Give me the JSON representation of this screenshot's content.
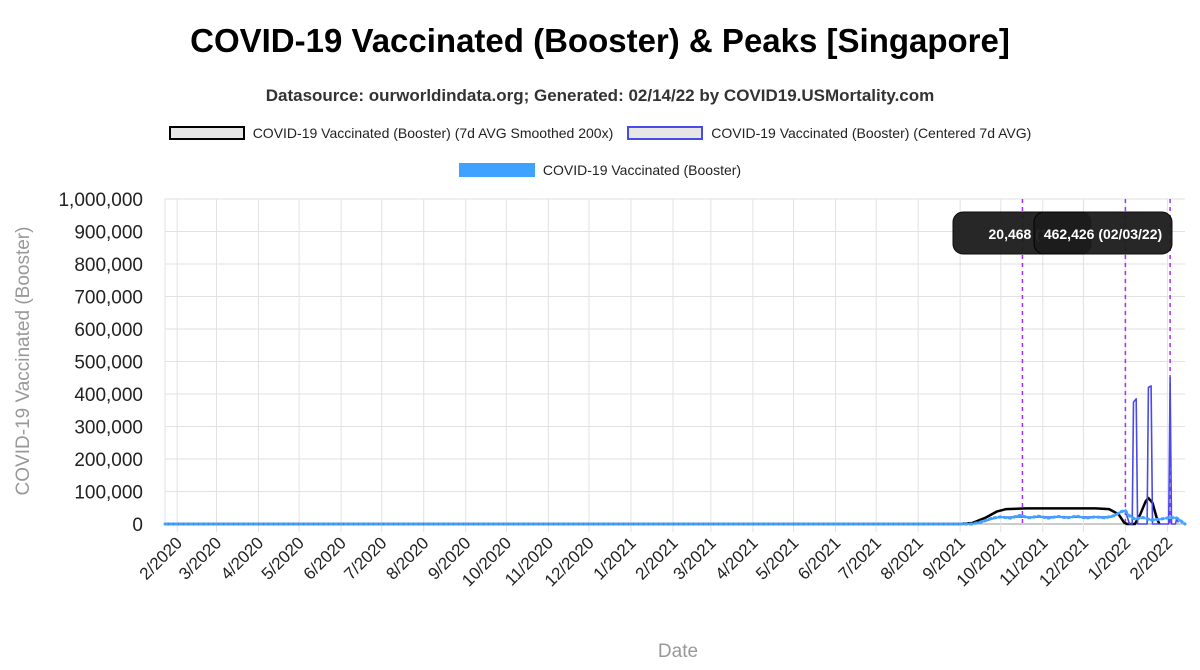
{
  "title": "COVID-19 Vaccinated (Booster) & Peaks [Singapore]",
  "subtitle": "Datasource: ourworldindata.org; Generated: 02/14/22 by COVID19.USMortality.com",
  "legend": [
    {
      "label": "COVID-19 Vaccinated (Booster) (7d AVG Smoothed 200x)",
      "fill": "#e6e6e6",
      "stroke": "#000000"
    },
    {
      "label": "COVID-19 Vaccinated (Booster) (Centered 7d AVG)",
      "fill": "#e6e6e6",
      "stroke": "#4a4ae8"
    },
    {
      "label": "COVID-19 Vaccinated (Booster)",
      "fill": "#3fa2ff",
      "stroke": "#3fa2ff"
    }
  ],
  "tooltips": [
    {
      "text": "20,468 (10",
      "x": "2021-10-17"
    },
    {
      "text": "462,426 (02/03/22)",
      "x": "2022-02-03"
    }
  ],
  "chart_data": {
    "type": "line",
    "xlabel": "Date",
    "ylabel": "COVID-19 Vaccinated (Booster)",
    "x_range": [
      "2020-01-23",
      "2022-02-14"
    ],
    "ylim": [
      0,
      1000000
    ],
    "y_ticks": [
      "0",
      "100,000",
      "200,000",
      "300,000",
      "400,000",
      "500,000",
      "600,000",
      "700,000",
      "800,000",
      "900,000",
      "1,000,000"
    ],
    "x_ticks": [
      {
        "date": "2020-02-01",
        "label": "2/2020"
      },
      {
        "date": "2020-03-01",
        "label": "3/2020"
      },
      {
        "date": "2020-04-01",
        "label": "4/2020"
      },
      {
        "date": "2020-05-01",
        "label": "5/2020"
      },
      {
        "date": "2020-06-01",
        "label": "6/2020"
      },
      {
        "date": "2020-07-01",
        "label": "7/2020"
      },
      {
        "date": "2020-08-01",
        "label": "8/2020"
      },
      {
        "date": "2020-09-01",
        "label": "9/2020"
      },
      {
        "date": "2020-10-01",
        "label": "10/2020"
      },
      {
        "date": "2020-11-01",
        "label": "11/2020"
      },
      {
        "date": "2020-12-01",
        "label": "12/2020"
      },
      {
        "date": "2021-01-01",
        "label": "1/2021"
      },
      {
        "date": "2021-02-01",
        "label": "2/2021"
      },
      {
        "date": "2021-03-01",
        "label": "3/2021"
      },
      {
        "date": "2021-04-01",
        "label": "4/2021"
      },
      {
        "date": "2021-05-01",
        "label": "5/2021"
      },
      {
        "date": "2021-06-01",
        "label": "6/2021"
      },
      {
        "date": "2021-07-01",
        "label": "7/2021"
      },
      {
        "date": "2021-08-01",
        "label": "8/2021"
      },
      {
        "date": "2021-09-01",
        "label": "9/2021"
      },
      {
        "date": "2021-10-01",
        "label": "10/2021"
      },
      {
        "date": "2021-11-01",
        "label": "11/2021"
      },
      {
        "date": "2021-12-01",
        "label": "12/2021"
      },
      {
        "date": "2022-01-01",
        "label": "1/2022"
      },
      {
        "date": "2022-02-01",
        "label": "2/2022"
      }
    ],
    "peak_lines": [
      "2021-10-17",
      "2022-01-01",
      "2022-02-03"
    ],
    "series": [
      {
        "name": "COVID-19 Vaccinated (Booster) (7d AVG Smoothed 200x)",
        "color": "#000000",
        "style": "line",
        "points": [
          [
            "2020-01-23",
            0
          ],
          [
            "2021-09-01",
            0
          ],
          [
            "2021-09-10",
            3000
          ],
          [
            "2021-09-20",
            20000
          ],
          [
            "2021-09-28",
            38000
          ],
          [
            "2021-10-05",
            46000
          ],
          [
            "2021-10-20",
            48000
          ],
          [
            "2021-11-15",
            48000
          ],
          [
            "2021-12-10",
            48000
          ],
          [
            "2021-12-20",
            46000
          ],
          [
            "2021-12-27",
            30000
          ],
          [
            "2021-12-31",
            5000
          ],
          [
            "2022-01-02",
            0
          ],
          [
            "2022-01-08",
            0
          ],
          [
            "2022-01-12",
            30000
          ],
          [
            "2022-01-16",
            70000
          ],
          [
            "2022-01-18",
            80000
          ],
          [
            "2022-01-21",
            65000
          ],
          [
            "2022-01-24",
            20000
          ],
          [
            "2022-01-26",
            0
          ]
        ]
      },
      {
        "name": "COVID-19 Vaccinated (Booster) (Centered 7d AVG)",
        "color": "#4a4ae8",
        "style": "line",
        "points": [
          [
            "2020-01-23",
            0
          ],
          [
            "2021-09-05",
            0
          ],
          [
            "2021-09-12",
            2000
          ],
          [
            "2021-09-20",
            10000
          ],
          [
            "2021-09-28",
            20000
          ],
          [
            "2021-10-10",
            22000
          ],
          [
            "2021-10-25",
            21000
          ],
          [
            "2021-11-10",
            22000
          ],
          [
            "2021-11-25",
            21000
          ],
          [
            "2021-12-10",
            22000
          ],
          [
            "2021-12-22",
            22000
          ],
          [
            "2021-12-28",
            35000
          ],
          [
            "2022-01-01",
            40000
          ],
          [
            "2022-01-04",
            0
          ],
          [
            "2022-01-06",
            0
          ],
          [
            "2022-01-07",
            375000
          ],
          [
            "2022-01-09",
            385000
          ],
          [
            "2022-01-10",
            0
          ],
          [
            "2022-01-17",
            0
          ],
          [
            "2022-01-18",
            420000
          ],
          [
            "2022-01-20",
            425000
          ],
          [
            "2022-01-21",
            0
          ],
          [
            "2022-02-02",
            0
          ],
          [
            "2022-02-03",
            450000
          ],
          [
            "2022-02-04",
            0
          ],
          [
            "2022-02-07",
            0
          ],
          [
            "2022-02-08",
            20000
          ],
          [
            "2022-02-09",
            5000
          ]
        ]
      },
      {
        "name": "COVID-19 Vaccinated (Booster)",
        "color": "#3fa2ff",
        "style": "dotted",
        "points": [
          [
            "2020-01-23",
            0
          ],
          [
            "2021-09-10",
            0
          ],
          [
            "2021-09-18",
            8000
          ],
          [
            "2021-09-25",
            18000
          ],
          [
            "2021-10-01",
            22000
          ],
          [
            "2021-10-08",
            18000
          ],
          [
            "2021-10-15",
            26000
          ],
          [
            "2021-10-22",
            19000
          ],
          [
            "2021-10-29",
            24000
          ],
          [
            "2021-11-05",
            18000
          ],
          [
            "2021-11-12",
            23000
          ],
          [
            "2021-11-19",
            19000
          ],
          [
            "2021-11-26",
            24000
          ],
          [
            "2021-12-03",
            18000
          ],
          [
            "2021-12-10",
            22000
          ],
          [
            "2021-12-17",
            19000
          ],
          [
            "2021-12-24",
            26000
          ],
          [
            "2021-12-29",
            38000
          ],
          [
            "2022-01-01",
            42000
          ],
          [
            "2022-01-03",
            28000
          ],
          [
            "2022-01-08",
            15000
          ],
          [
            "2022-01-14",
            20000
          ],
          [
            "2022-01-20",
            12000
          ],
          [
            "2022-01-27",
            15000
          ],
          [
            "2022-02-03",
            20000
          ],
          [
            "2022-02-08",
            18000
          ],
          [
            "2022-02-14",
            0
          ]
        ]
      }
    ]
  }
}
